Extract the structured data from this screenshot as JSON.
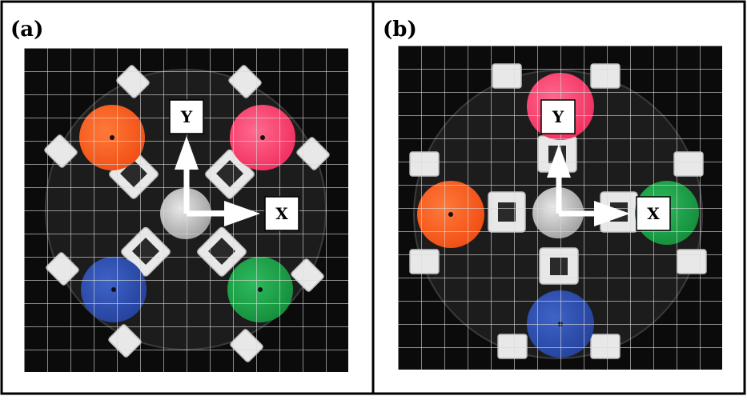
{
  "panels": [
    {
      "label": "(a)",
      "axis_y": "Y",
      "axis_x": "X"
    },
    {
      "label": "(b)",
      "axis_y": "Y",
      "axis_x": "X"
    }
  ],
  "colors": {
    "orange": "#ff5a1f",
    "pink": "#ff3d6e",
    "blue": "#2f4fb0",
    "green": "#1fa04a",
    "board": "#0a0a0a",
    "grid": "#d9d9d9",
    "frame": "#000000"
  }
}
